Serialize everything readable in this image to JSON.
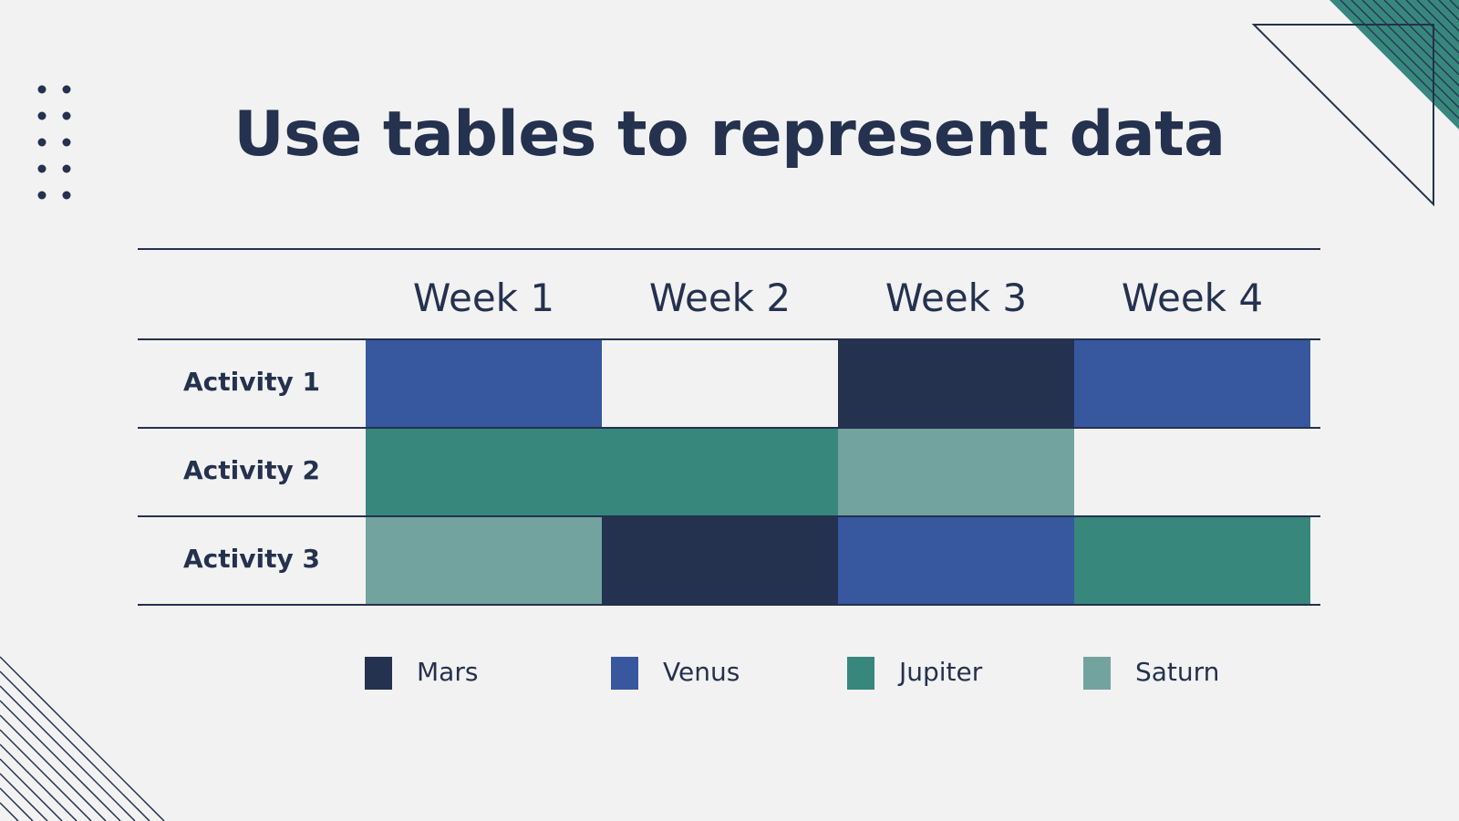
{
  "slide": {
    "title": "Use tables to represent data"
  },
  "colors": {
    "mars": "#24314f",
    "venus": "#37579f",
    "jupiter": "#37877d",
    "saturn": "#73a39f",
    "text": "#24314f",
    "background": "#f2f2f2"
  },
  "table": {
    "weeks": [
      "Week 1",
      "Week 2",
      "Week 3",
      "Week 4"
    ],
    "activities": [
      {
        "label": "Activity 1",
        "cells": [
          "venus",
          "",
          "mars",
          "venus"
        ]
      },
      {
        "label": "Activity 2",
        "cells": [
          "jupiter",
          "jupiter",
          "saturn",
          ""
        ]
      },
      {
        "label": "Activity 3",
        "cells": [
          "saturn",
          "mars",
          "venus",
          "jupiter"
        ]
      }
    ]
  },
  "legend": [
    {
      "key": "mars",
      "label": "Mars"
    },
    {
      "key": "venus",
      "label": "Venus"
    },
    {
      "key": "jupiter",
      "label": "Jupiter"
    },
    {
      "key": "saturn",
      "label": "Saturn"
    }
  ]
}
